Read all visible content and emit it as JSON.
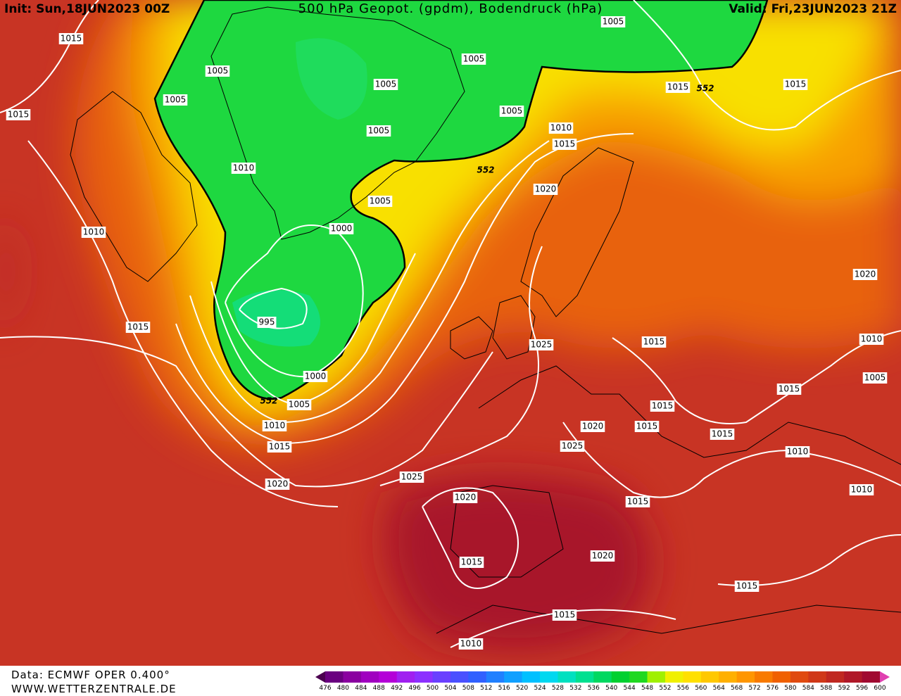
{
  "header": {
    "init": "Init: Sun,18JUN2023 00Z",
    "title": "500 hPa Geopot. (gpdm), Bodendruck (hPa)",
    "valid": "Valid: Fri,23JUN2023 21Z"
  },
  "footer": {
    "source": "Data: ECMWF OPER 0.400°",
    "website": "WWW.WETTERZENTRALE.DE"
  },
  "map": {
    "isobar_labels": [
      "1015",
      "1005",
      "1005",
      "1015",
      "1010",
      "1010",
      "1015",
      "995",
      "1000",
      "1005",
      "1005",
      "1005",
      "1005",
      "1005",
      "1005",
      "1010",
      "1015",
      "1020",
      "1015",
      "1015",
      "1000",
      "1005",
      "1010",
      "1015",
      "1020",
      "1025",
      "1020",
      "1015",
      "1025",
      "1015",
      "1015",
      "1015",
      "1020",
      "1025",
      "1015",
      "1015",
      "1010",
      "1005",
      "1020",
      "1010",
      "1010",
      "1015",
      "1020",
      "1015",
      "1015",
      "1010"
    ],
    "geopotential_labels": [
      "552",
      "552",
      "552"
    ]
  },
  "colorbar": {
    "ticks": [
      476,
      480,
      484,
      488,
      492,
      496,
      500,
      504,
      508,
      512,
      516,
      520,
      524,
      528,
      532,
      536,
      540,
      544,
      548,
      552,
      556,
      560,
      564,
      568,
      572,
      576,
      580,
      584,
      588,
      592,
      596,
      600
    ],
    "colors": [
      "#4b0050",
      "#6a0080",
      "#8a00a0",
      "#a000c0",
      "#b400d8",
      "#a020f0",
      "#8c30ff",
      "#6a40ff",
      "#4a50ff",
      "#3060ff",
      "#2080ff",
      "#10a0ff",
      "#00c0ff",
      "#00d8f0",
      "#00e0c0",
      "#00e090",
      "#00d860",
      "#00d030",
      "#20d820",
      "#a0f000",
      "#f0f000",
      "#ffe000",
      "#ffc800",
      "#ffb000",
      "#ff9600",
      "#f87a00",
      "#f06000",
      "#e04a10",
      "#d03818",
      "#c02820",
      "#b01828",
      "#a00a30",
      "#e040b0"
    ]
  }
}
